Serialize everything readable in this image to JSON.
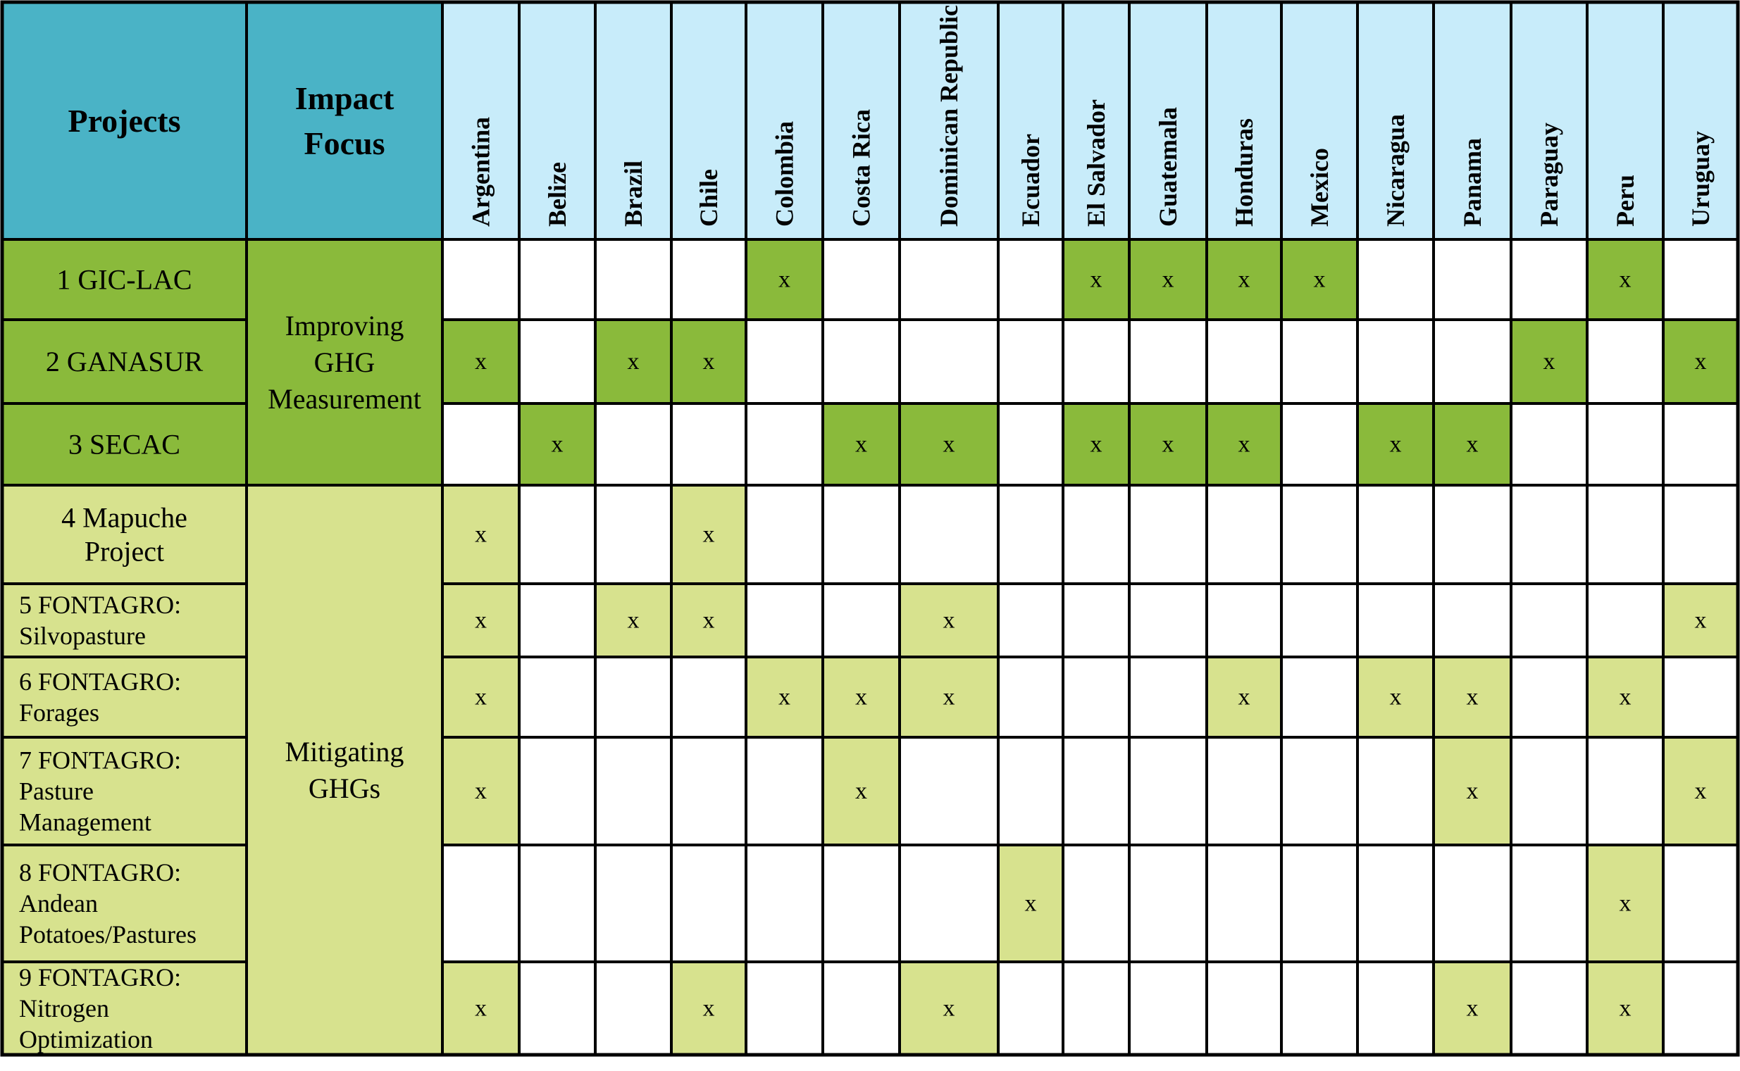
{
  "colors": {
    "header_project": "#4ab3c6",
    "header_country": "#c8ecfa",
    "group_measurement": "#8aba3b",
    "group_mitigation": "#d7e28e",
    "empty_cell": "#ffffff",
    "border": "#000000"
  },
  "chart_data": {
    "type": "table",
    "header": {
      "projects": "Projects",
      "impact_focus": [
        "Impact",
        "Focus"
      ]
    },
    "countries": [
      "Argentina",
      "Belize",
      "Brazil",
      "Chile",
      "Colombia",
      "Costa Rica",
      "Dominican Republic",
      "Ecuador",
      "El Salvador",
      "Guatemala",
      "Honduras",
      "Mexico",
      "Nicaragua",
      "Panama",
      "Paraguay",
      "Peru",
      "Uruguay"
    ],
    "groups": [
      {
        "focus": [
          "Improving",
          "GHG",
          "Measurement"
        ],
        "rows": [
          0,
          1,
          2
        ],
        "color": "#8aba3b"
      },
      {
        "focus": [
          "Mitigating",
          "GHGs"
        ],
        "rows": [
          3,
          4,
          5,
          6,
          7,
          8
        ],
        "color": "#d7e28e"
      }
    ],
    "projects": [
      {
        "label": [
          "1 GIC-LAC"
        ],
        "align": "center",
        "countries": [
          "Colombia",
          "El Salvador",
          "Guatemala",
          "Honduras",
          "Mexico",
          "Peru"
        ]
      },
      {
        "label": [
          "2 GANASUR"
        ],
        "align": "center",
        "countries": [
          "Argentina",
          "Brazil",
          "Chile",
          "Paraguay",
          "Uruguay"
        ]
      },
      {
        "label": [
          "3 SECAC"
        ],
        "align": "center",
        "countries": [
          "Belize",
          "Costa Rica",
          "Dominican Republic",
          "El Salvador",
          "Guatemala",
          "Honduras",
          "Nicaragua",
          "Panama"
        ]
      },
      {
        "label": [
          "4 Mapuche",
          "Project"
        ],
        "align": "center",
        "countries": [
          "Argentina",
          "Chile"
        ]
      },
      {
        "label": [
          "5 FONTAGRO:",
          "Silvopasture"
        ],
        "align": "left",
        "countries": [
          "Argentina",
          "Brazil",
          "Chile",
          "Dominican Republic",
          "Uruguay"
        ]
      },
      {
        "label": [
          "6 FONTAGRO:",
          "Forages"
        ],
        "align": "left",
        "countries": [
          "Argentina",
          "Colombia",
          "Costa Rica",
          "Dominican Republic",
          "Honduras",
          "Nicaragua",
          "Panama",
          "Peru"
        ]
      },
      {
        "label": [
          "7 FONTAGRO:",
          "Pasture",
          "Management"
        ],
        "align": "left",
        "countries": [
          "Argentina",
          "Costa Rica",
          "Panama",
          "Uruguay"
        ]
      },
      {
        "label": [
          "8 FONTAGRO:",
          "Andean",
          "Potatoes/Pastures"
        ],
        "align": "left",
        "countries": [
          "Ecuador",
          "Peru"
        ]
      },
      {
        "label": [
          "9 FONTAGRO:",
          "Nitrogen",
          "Optimization"
        ],
        "align": "left",
        "countries": [
          "Argentina",
          "Chile",
          "Dominican Republic",
          "Panama",
          "Peru"
        ]
      }
    ],
    "mark": "x"
  }
}
